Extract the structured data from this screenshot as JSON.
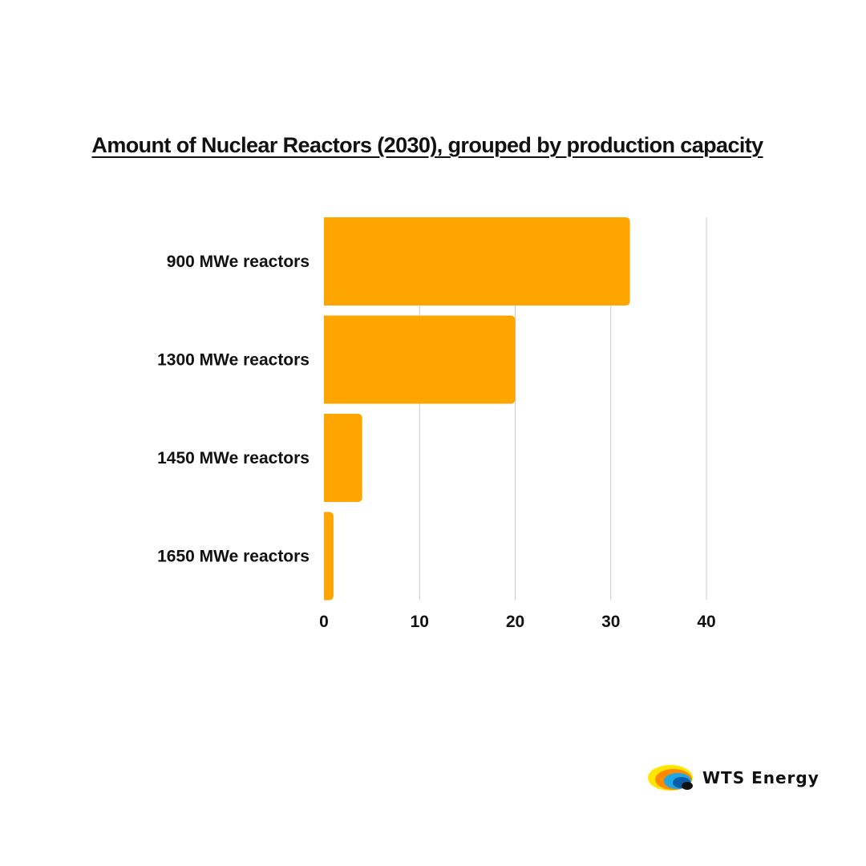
{
  "chart_data": {
    "type": "bar",
    "orientation": "horizontal",
    "title": "Amount of Nuclear Reactors (2030), grouped by production capacity",
    "categories": [
      "900 MWe reactors",
      "1300 MWe reactors",
      "1450 MWe reactors",
      "1650 MWe reactors"
    ],
    "values": [
      32,
      20,
      4,
      1
    ],
    "xlim": [
      0,
      40
    ],
    "xticks": [
      0,
      10,
      20,
      30,
      40
    ],
    "xlabel": "",
    "ylabel": "",
    "grid": "vertical",
    "legend": "none",
    "bar_color": "#FFA500",
    "grid_color": "#CCCCCC"
  },
  "logo": {
    "text": "WTS Energy",
    "colors": [
      "#FFE600",
      "#FF8A00",
      "#1EA7E1",
      "#0A5EA8",
      "#111111"
    ]
  }
}
